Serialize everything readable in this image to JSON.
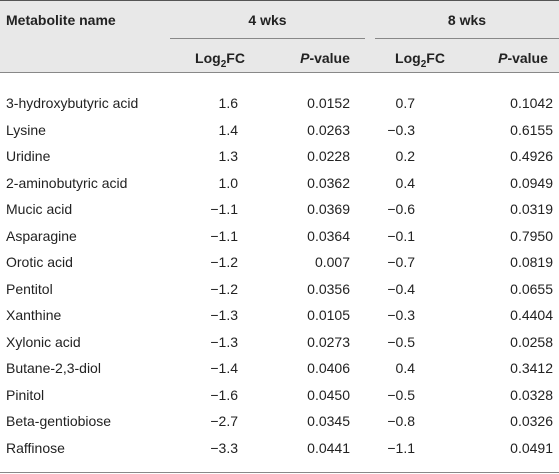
{
  "header": {
    "name": "Metabolite name",
    "groups": [
      "4 wks",
      "8 wks"
    ],
    "subheader": [
      {
        "pre": "Log",
        "sub": "2",
        "post": "FC"
      },
      {
        "pre": "P",
        "post": "-value"
      },
      {
        "pre": "Log",
        "sub": "2",
        "post": "FC"
      },
      {
        "pre": "P",
        "post": "-value"
      }
    ]
  },
  "table": {
    "rows": [
      [
        "3-hydroxybutyric acid",
        "1.6",
        "0.0152",
        "0.7",
        "0.1042"
      ],
      [
        "Lysine",
        "1.4",
        "0.0263",
        "−0.3",
        "0.6155"
      ],
      [
        "Uridine",
        "1.3",
        "0.0228",
        "0.2",
        "0.4926"
      ],
      [
        "2-aminobutyric acid",
        "1.0",
        "0.0362",
        "0.4",
        "0.0949"
      ],
      [
        "Mucic acid",
        "−1.1",
        "0.0369",
        "−0.6",
        "0.0319"
      ],
      [
        "Asparagine",
        "−1.1",
        "0.0364",
        "−0.1",
        "0.7950"
      ],
      [
        "Orotic acid",
        "−1.2",
        "0.007",
        "−0.7",
        "0.0819"
      ],
      [
        "Pentitol",
        "−1.2",
        "0.0356",
        "−0.4",
        "0.0655"
      ],
      [
        "Xanthine",
        "−1.3",
        "0.0105",
        "−0.3",
        "0.4404"
      ],
      [
        "Xylonic acid",
        "−1.3",
        "0.0273",
        "−0.5",
        "0.0258"
      ],
      [
        "Butane-2,3-diol",
        "−1.4",
        "0.0406",
        "0.4",
        "0.3412"
      ],
      [
        "Pinitol",
        "−1.6",
        "0.0450",
        "−0.5",
        "0.0328"
      ],
      [
        "Beta-gentiobiose",
        "−2.7",
        "0.0345",
        "−0.8",
        "0.0326"
      ],
      [
        "Raffinose",
        "−3.3",
        "0.0441",
        "−1.1",
        "0.0491"
      ]
    ]
  }
}
